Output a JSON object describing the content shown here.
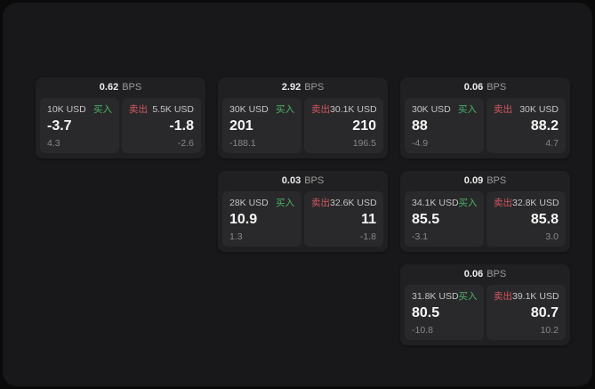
{
  "labels": {
    "bps_suffix": "BPS",
    "buy": "买入",
    "sell": "卖出"
  },
  "colors": {
    "outer_background": "#0a0a0b",
    "surface": "#18181a",
    "card_background": "#202022",
    "tile_background": "#29292b",
    "buy_green": "#4bb368",
    "sell_red": "#d65560"
  },
  "cards": [
    {
      "bps": "0.62",
      "buy": {
        "amount": "10K USD",
        "value": "-3.7",
        "sub": "4.3"
      },
      "sell": {
        "amount": "5.5K USD",
        "value": "-1.8",
        "sub": "-2.6"
      }
    },
    {
      "bps": "2.92",
      "buy": {
        "amount": "30K USD",
        "value": "201",
        "sub": "-188.1"
      },
      "sell": {
        "amount": "30.1K USD",
        "value": "210",
        "sub": "196.5"
      }
    },
    {
      "bps": "0.06",
      "buy": {
        "amount": "30K USD",
        "value": "88",
        "sub": "-4.9"
      },
      "sell": {
        "amount": "30K USD",
        "value": "88.2",
        "sub": "4.7"
      }
    },
    {
      "bps": "0.03",
      "buy": {
        "amount": "28K USD",
        "value": "10.9",
        "sub": "1.3"
      },
      "sell": {
        "amount": "32.6K USD",
        "value": "11",
        "sub": "-1.8"
      }
    },
    {
      "bps": "0.09",
      "buy": {
        "amount": "34.1K USD",
        "value": "85.5",
        "sub": "-3.1"
      },
      "sell": {
        "amount": "32.8K USD",
        "value": "85.8",
        "sub": "3.0"
      }
    },
    {
      "bps": "0.06",
      "buy": {
        "amount": "31.8K USD",
        "value": "80.5",
        "sub": "-10.8"
      },
      "sell": {
        "amount": "39.1K USD",
        "value": "80.7",
        "sub": "10.2"
      }
    }
  ]
}
